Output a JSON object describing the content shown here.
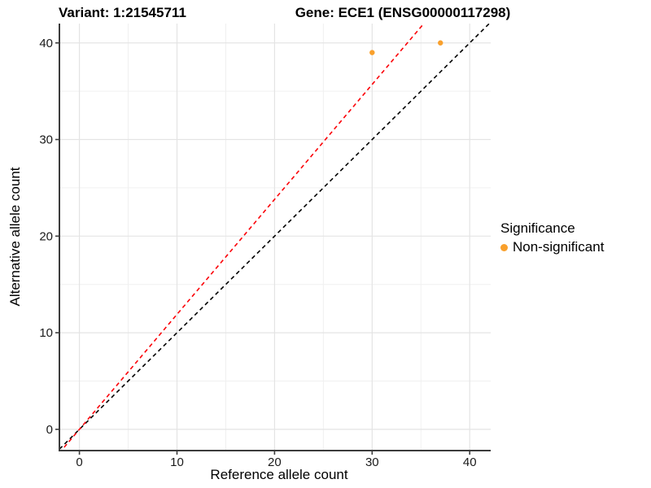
{
  "titles": {
    "variant": "Variant: 1:21545711",
    "gene": "Gene: ECE1 (ENSG00000117298)"
  },
  "legend": {
    "title": "Significance",
    "items": [
      {
        "label": "Non-significant",
        "color": "#F9A02C"
      }
    ]
  },
  "chart_data": {
    "type": "scatter",
    "title": "Variant: 1:21545711  |  Gene: ECE1 (ENSG00000117298)",
    "xlabel": "Reference allele count",
    "ylabel": "Alternative allele count",
    "xlim": [
      -2.05,
      42.15
    ],
    "ylim": [
      -2.2,
      42.0
    ],
    "x_ticks": [
      0,
      10,
      20,
      30,
      40
    ],
    "y_ticks": [
      0,
      10,
      20,
      30,
      40
    ],
    "x_minor_ticks": [
      5,
      15,
      25,
      35
    ],
    "y_minor_ticks": [
      5,
      15,
      25,
      35
    ],
    "grid": true,
    "legend_position": "right",
    "series": [
      {
        "name": "Non-significant",
        "color": "#F9A02C",
        "points": [
          {
            "x": 30,
            "y": 39
          },
          {
            "x": 37,
            "y": 40
          }
        ]
      }
    ],
    "lines": [
      {
        "name": "identity-line",
        "slope": 1.0,
        "intercept": 0,
        "color": "#000000",
        "style": "dashed"
      },
      {
        "name": "allelic-ratio-line",
        "slope": 1.19,
        "intercept": 0,
        "color": "#FB0007",
        "style": "dashed"
      }
    ],
    "colors": {
      "major_grid": "#E4E4E4",
      "minor_grid": "#F0F0F0",
      "axis_line": "#3C3C3C",
      "tick_text": "#1A1A1A",
      "panel_background": "#FFFFFF"
    }
  }
}
